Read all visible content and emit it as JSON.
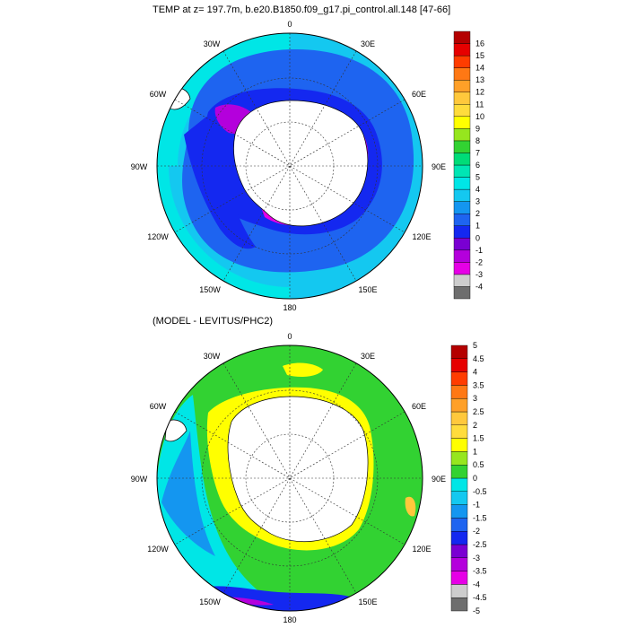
{
  "panels": [
    {
      "title": "TEMP at z= 197.7m, b.e20.B1850.f09_g17.pi_control.all.148 [47-66]",
      "lon_labels": [
        "0",
        "30E",
        "60E",
        "90E",
        "120E",
        "150E",
        "180",
        "150W",
        "120W",
        "90W",
        "60W",
        "30W"
      ],
      "colorbar": {
        "labels": [
          "-4",
          "-3",
          "-2",
          "-1",
          "0",
          "1",
          "2",
          "3",
          "4",
          "5",
          "6",
          "7",
          "8",
          "9",
          "10",
          "11",
          "12",
          "13",
          "14",
          "15",
          "16"
        ],
        "colors": [
          "#6e6e6e",
          "#cdcdcd",
          "#e600e6",
          "#b400dc",
          "#7a00d2",
          "#1428f0",
          "#1e64f0",
          "#1496f0",
          "#14c8f0",
          "#00e6e6",
          "#00e6b4",
          "#00dc78",
          "#32d232",
          "#96e61e",
          "#ffff00",
          "#ffdc3c",
          "#ffc83c",
          "#ffa028",
          "#ff7814",
          "#ff3c00",
          "#e60000",
          "#b40000"
        ]
      }
    },
    {
      "title": "(MODEL - LEVITUS/PHC2)",
      "lon_labels": [
        "0",
        "30E",
        "60E",
        "90E",
        "120E",
        "150E",
        "180",
        "150W",
        "120W",
        "90W",
        "60W",
        "30W"
      ],
      "colorbar": {
        "labels": [
          "-5",
          "-4.5",
          "-4",
          "-3.5",
          "-3",
          "-2.5",
          "-2",
          "-1.5",
          "-1",
          "-0.5",
          "0",
          "0.5",
          "1",
          "1.5",
          "2",
          "2.5",
          "3",
          "3.5",
          "4",
          "4.5",
          "5"
        ],
        "colors": [
          "#6e6e6e",
          "#cdcdcd",
          "#e600e6",
          "#b400dc",
          "#7a00d2",
          "#1428f0",
          "#1e64f0",
          "#1496f0",
          "#14c8f0",
          "#00e6e6",
          "#32d232",
          "#96e61e",
          "#ffff00",
          "#ffdc3c",
          "#ffc83c",
          "#ffa028",
          "#ff7814",
          "#ff3c00",
          "#e60000",
          "#b40000"
        ]
      }
    }
  ]
}
